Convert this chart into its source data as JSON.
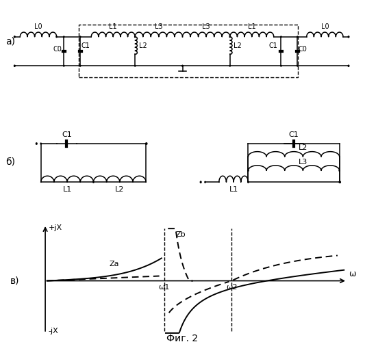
{
  "title": "Фиг. 2",
  "panel_a_label": "а)",
  "panel_b_label": "б)",
  "panel_v_label": "в)",
  "graph_xlabel": "ω",
  "graph_ylabel_pos": "+jХ",
  "graph_ylabel_neg": "-jХ",
  "graph_za_label": "Za",
  "graph_zb_label": "Zb",
  "graph_w1_label": "ω1",
  "graph_w2_label": "ω2",
  "background_color": "#ffffff"
}
